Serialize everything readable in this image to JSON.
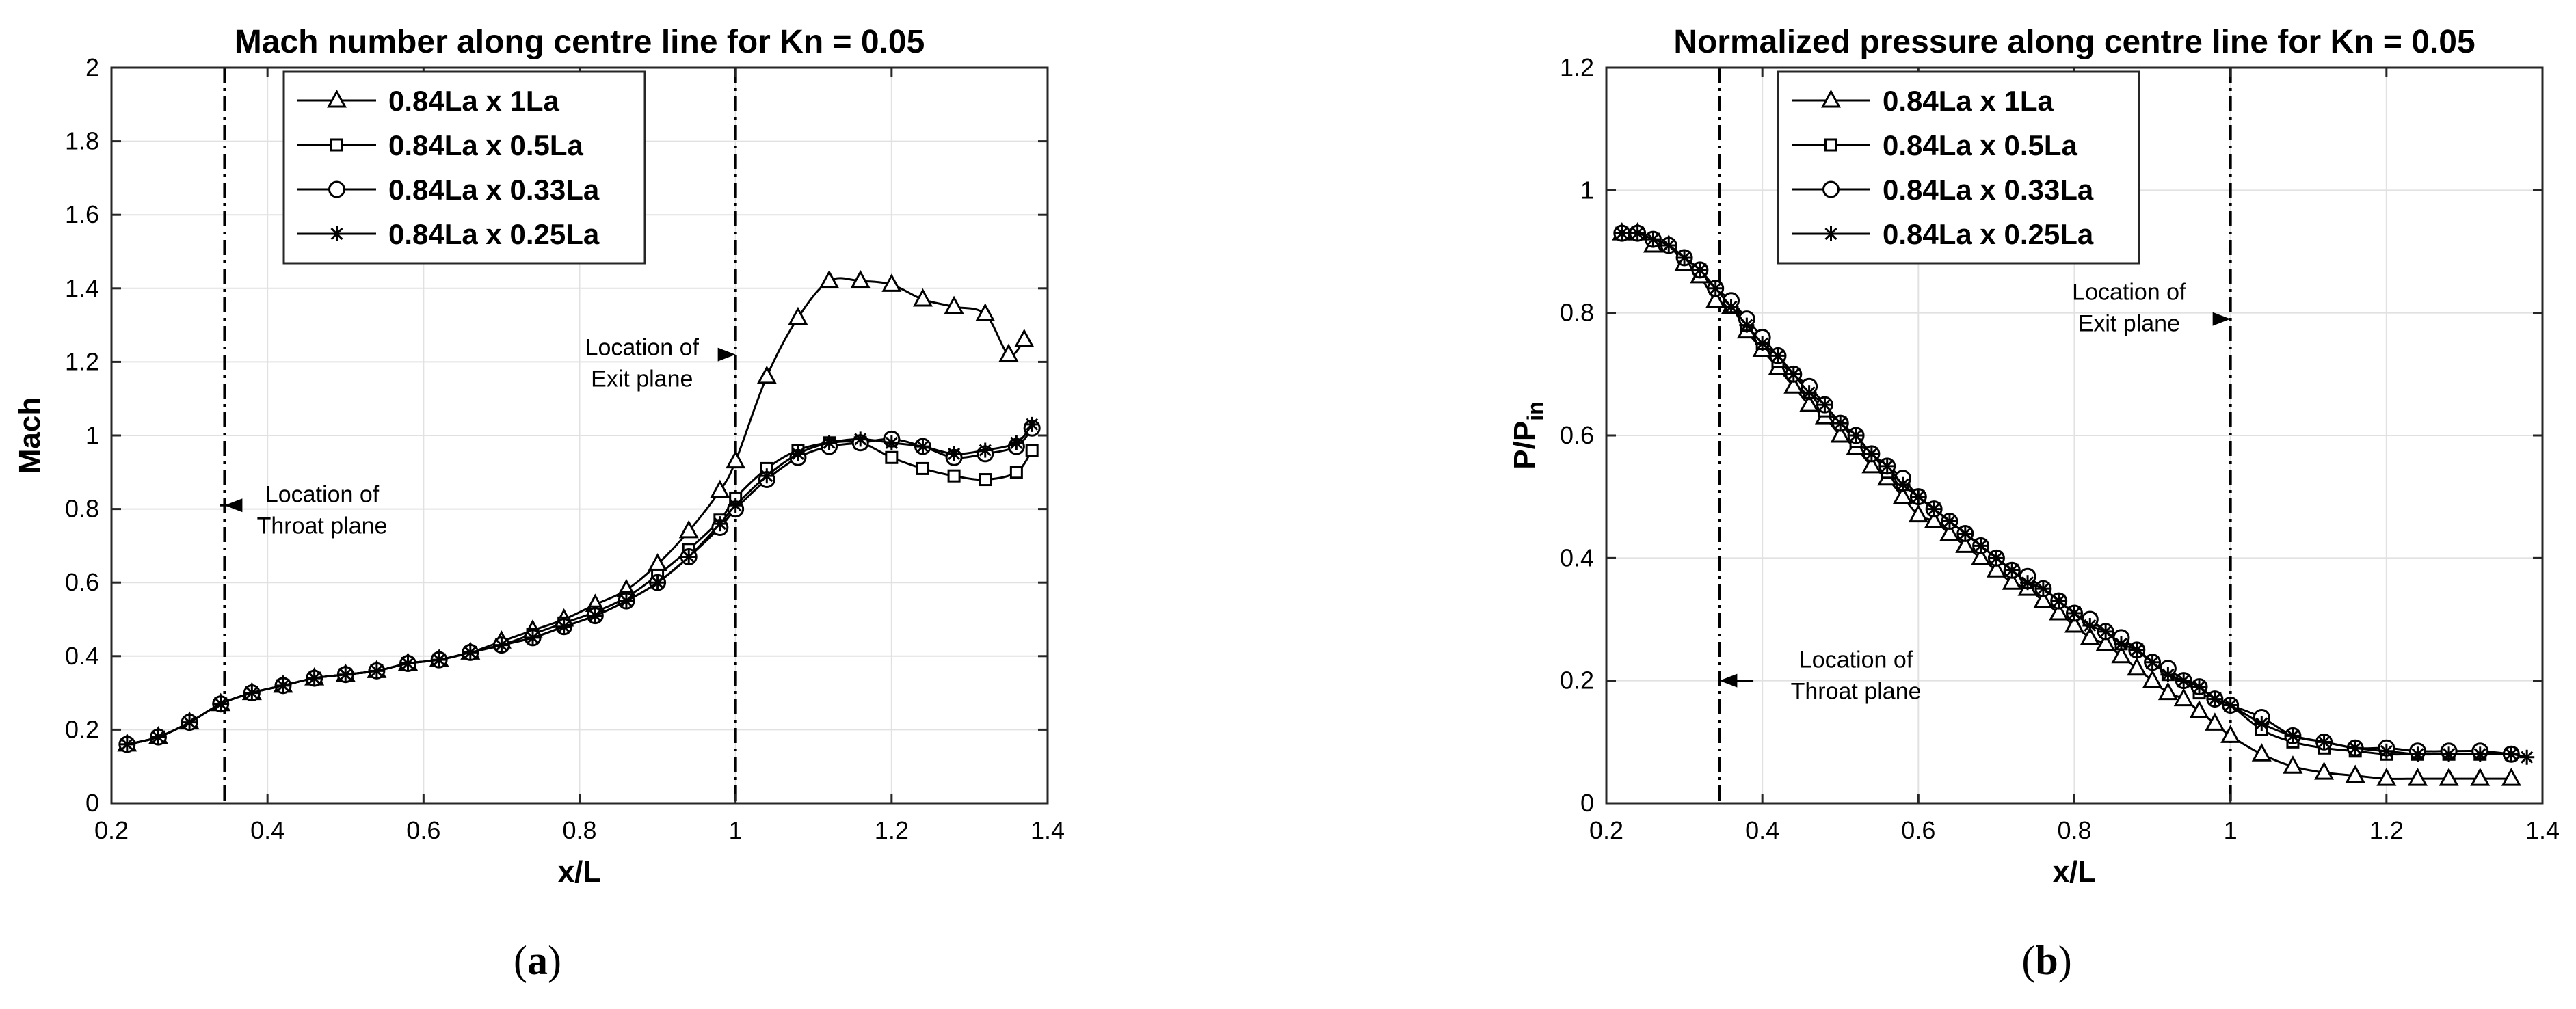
{
  "chart_data": [
    {
      "type": "line",
      "panel": "a",
      "title": "Mach number along centre line for Kn = 0.05",
      "xlabel": "x/L",
      "ylabel": "Mach",
      "xlim": [
        0.2,
        1.4
      ],
      "ylim": [
        0,
        2
      ],
      "xticks": [
        0.2,
        0.4,
        0.6,
        0.8,
        1,
        1.2,
        1.4
      ],
      "yticks": [
        0,
        0.2,
        0.4,
        0.6,
        0.8,
        1,
        1.2,
        1.4,
        1.6,
        1.8,
        2
      ],
      "xtick_labels": [
        "0.2",
        "0.4",
        "0.6",
        "0.8",
        "1",
        "1.2",
        "1.4"
      ],
      "ytick_labels": [
        "0",
        "0.2",
        "0.4",
        "0.6",
        "0.8",
        "1",
        "1.2",
        "1.4",
        "1.6",
        "1.8",
        "2"
      ],
      "grid": true,
      "legend_position": "top-left",
      "vlines": [
        0.345,
        1.0
      ],
      "annotations": [
        {
          "lines": [
            "Location of",
            "Throat plane"
          ],
          "arrow_to": [
            0.345,
            0.81
          ],
          "text_at": [
            0.47,
            0.8
          ]
        },
        {
          "lines": [
            "Location of",
            "Exit plane"
          ],
          "arrow_to": [
            1.0,
            1.22
          ],
          "text_at": [
            0.88,
            1.2
          ]
        }
      ],
      "series": [
        {
          "name": "0.84La x 1La",
          "marker": "triangle",
          "x": [
            0.22,
            0.26,
            0.3,
            0.34,
            0.38,
            0.42,
            0.46,
            0.5,
            0.54,
            0.58,
            0.62,
            0.66,
            0.7,
            0.74,
            0.78,
            0.82,
            0.86,
            0.9,
            0.94,
            0.98,
            1.0,
            1.04,
            1.08,
            1.12,
            1.16,
            1.2,
            1.24,
            1.28,
            1.32,
            1.35,
            1.37
          ],
          "y": [
            0.16,
            0.18,
            0.22,
            0.27,
            0.3,
            0.32,
            0.34,
            0.35,
            0.36,
            0.38,
            0.39,
            0.41,
            0.44,
            0.47,
            0.5,
            0.54,
            0.58,
            0.65,
            0.74,
            0.85,
            0.93,
            1.16,
            1.32,
            1.42,
            1.42,
            1.41,
            1.37,
            1.35,
            1.33,
            1.22,
            1.26
          ]
        },
        {
          "name": "0.84La x 0.5La",
          "marker": "square",
          "x": [
            0.22,
            0.26,
            0.3,
            0.34,
            0.38,
            0.42,
            0.46,
            0.5,
            0.54,
            0.58,
            0.62,
            0.66,
            0.7,
            0.74,
            0.78,
            0.82,
            0.86,
            0.9,
            0.94,
            0.98,
            1.0,
            1.04,
            1.08,
            1.12,
            1.16,
            1.2,
            1.24,
            1.28,
            1.32,
            1.36,
            1.38
          ],
          "y": [
            0.16,
            0.18,
            0.22,
            0.27,
            0.3,
            0.32,
            0.34,
            0.35,
            0.36,
            0.38,
            0.39,
            0.41,
            0.43,
            0.46,
            0.49,
            0.52,
            0.56,
            0.62,
            0.69,
            0.77,
            0.83,
            0.91,
            0.96,
            0.98,
            0.98,
            0.94,
            0.91,
            0.89,
            0.88,
            0.9,
            0.96
          ]
        },
        {
          "name": "0.84La x 0.33La",
          "marker": "circle",
          "x": [
            0.22,
            0.26,
            0.3,
            0.34,
            0.38,
            0.42,
            0.46,
            0.5,
            0.54,
            0.58,
            0.62,
            0.66,
            0.7,
            0.74,
            0.78,
            0.82,
            0.86,
            0.9,
            0.94,
            0.98,
            1.0,
            1.04,
            1.08,
            1.12,
            1.16,
            1.2,
            1.24,
            1.28,
            1.32,
            1.36,
            1.38
          ],
          "y": [
            0.16,
            0.18,
            0.22,
            0.27,
            0.3,
            0.32,
            0.34,
            0.35,
            0.36,
            0.38,
            0.39,
            0.41,
            0.43,
            0.45,
            0.48,
            0.51,
            0.55,
            0.6,
            0.67,
            0.75,
            0.8,
            0.88,
            0.94,
            0.97,
            0.98,
            0.99,
            0.97,
            0.94,
            0.95,
            0.97,
            1.02
          ]
        },
        {
          "name": "0.84La x 0.25La",
          "marker": "asterisk",
          "x": [
            0.22,
            0.26,
            0.3,
            0.34,
            0.38,
            0.42,
            0.46,
            0.5,
            0.54,
            0.58,
            0.62,
            0.66,
            0.7,
            0.74,
            0.78,
            0.82,
            0.86,
            0.9,
            0.94,
            0.98,
            1.0,
            1.04,
            1.08,
            1.12,
            1.16,
            1.2,
            1.24,
            1.28,
            1.32,
            1.36,
            1.38
          ],
          "y": [
            0.16,
            0.18,
            0.22,
            0.27,
            0.3,
            0.32,
            0.34,
            0.35,
            0.36,
            0.38,
            0.39,
            0.41,
            0.43,
            0.45,
            0.48,
            0.51,
            0.55,
            0.6,
            0.67,
            0.76,
            0.81,
            0.89,
            0.95,
            0.98,
            0.99,
            0.98,
            0.97,
            0.95,
            0.96,
            0.98,
            1.03
          ]
        }
      ]
    },
    {
      "type": "line",
      "panel": "b",
      "title": "Normalized pressure along centre line for Kn = 0.05",
      "xlabel": "x/L",
      "ylabel": "P/P",
      "ylabel_sub": "in",
      "xlim": [
        0.2,
        1.4
      ],
      "ylim": [
        0,
        1.2
      ],
      "xticks": [
        0.2,
        0.4,
        0.6,
        0.8,
        1,
        1.2,
        1.4
      ],
      "yticks": [
        0,
        0.2,
        0.4,
        0.6,
        0.8,
        1,
        1.2
      ],
      "xtick_labels": [
        "0.2",
        "0.4",
        "0.6",
        "0.8",
        "1",
        "1.2",
        "1.4"
      ],
      "ytick_labels": [
        "0",
        "0.2",
        "0.4",
        "0.6",
        "0.8",
        "1",
        "1.2"
      ],
      "grid": true,
      "legend_position": "top-center",
      "vlines": [
        0.345,
        1.0
      ],
      "annotations": [
        {
          "lines": [
            "Location of",
            "Throat plane"
          ],
          "arrow_to": [
            0.345,
            0.2
          ],
          "text_at": [
            0.52,
            0.21
          ]
        },
        {
          "lines": [
            "Location of",
            "Exit plane"
          ],
          "arrow_to": [
            1.0,
            0.79
          ],
          "text_at": [
            0.87,
            0.81
          ]
        }
      ],
      "series": [
        {
          "name": "0.84La x 1La",
          "marker": "triangle",
          "x": [
            0.22,
            0.24,
            0.26,
            0.28,
            0.3,
            0.32,
            0.34,
            0.36,
            0.38,
            0.4,
            0.42,
            0.44,
            0.46,
            0.48,
            0.5,
            0.52,
            0.54,
            0.56,
            0.58,
            0.6,
            0.62,
            0.64,
            0.66,
            0.68,
            0.7,
            0.72,
            0.74,
            0.76,
            0.78,
            0.8,
            0.82,
            0.84,
            0.86,
            0.88,
            0.9,
            0.92,
            0.94,
            0.96,
            0.98,
            1.0,
            1.04,
            1.08,
            1.12,
            1.16,
            1.2,
            1.24,
            1.28,
            1.32,
            1.36
          ],
          "y": [
            0.93,
            0.93,
            0.91,
            0.91,
            0.88,
            0.86,
            0.82,
            0.81,
            0.77,
            0.74,
            0.71,
            0.68,
            0.65,
            0.63,
            0.6,
            0.58,
            0.55,
            0.53,
            0.5,
            0.47,
            0.46,
            0.44,
            0.42,
            0.4,
            0.38,
            0.36,
            0.35,
            0.33,
            0.31,
            0.29,
            0.27,
            0.26,
            0.24,
            0.22,
            0.2,
            0.18,
            0.17,
            0.15,
            0.13,
            0.11,
            0.08,
            0.06,
            0.05,
            0.045,
            0.04,
            0.04,
            0.04,
            0.04,
            0.04
          ]
        },
        {
          "name": "0.84La x 0.5La",
          "marker": "square",
          "x": [
            0.22,
            0.24,
            0.26,
            0.28,
            0.3,
            0.32,
            0.34,
            0.36,
            0.38,
            0.4,
            0.42,
            0.44,
            0.46,
            0.48,
            0.5,
            0.52,
            0.54,
            0.56,
            0.58,
            0.6,
            0.62,
            0.64,
            0.66,
            0.68,
            0.7,
            0.72,
            0.74,
            0.76,
            0.78,
            0.8,
            0.82,
            0.84,
            0.86,
            0.88,
            0.9,
            0.92,
            0.94,
            0.96,
            0.98,
            1.0,
            1.04,
            1.08,
            1.12,
            1.16,
            1.2,
            1.24,
            1.28,
            1.32,
            1.36
          ],
          "y": [
            0.93,
            0.93,
            0.92,
            0.91,
            0.89,
            0.87,
            0.84,
            0.81,
            0.78,
            0.75,
            0.72,
            0.7,
            0.67,
            0.64,
            0.62,
            0.59,
            0.57,
            0.54,
            0.52,
            0.5,
            0.48,
            0.46,
            0.44,
            0.42,
            0.4,
            0.38,
            0.36,
            0.35,
            0.33,
            0.31,
            0.3,
            0.28,
            0.26,
            0.25,
            0.23,
            0.21,
            0.2,
            0.18,
            0.17,
            0.16,
            0.12,
            0.1,
            0.09,
            0.085,
            0.08,
            0.08,
            0.08,
            0.08,
            0.08
          ]
        },
        {
          "name": "0.84La x 0.33La",
          "marker": "circle",
          "x": [
            0.22,
            0.24,
            0.26,
            0.28,
            0.3,
            0.32,
            0.34,
            0.36,
            0.38,
            0.4,
            0.42,
            0.44,
            0.46,
            0.48,
            0.5,
            0.52,
            0.54,
            0.56,
            0.58,
            0.6,
            0.62,
            0.64,
            0.66,
            0.68,
            0.7,
            0.72,
            0.74,
            0.76,
            0.78,
            0.8,
            0.82,
            0.84,
            0.86,
            0.88,
            0.9,
            0.92,
            0.94,
            0.96,
            0.98,
            1.0,
            1.04,
            1.08,
            1.12,
            1.16,
            1.2,
            1.24,
            1.28,
            1.32,
            1.36
          ],
          "y": [
            0.93,
            0.93,
            0.92,
            0.91,
            0.89,
            0.87,
            0.84,
            0.82,
            0.79,
            0.76,
            0.73,
            0.7,
            0.68,
            0.65,
            0.62,
            0.6,
            0.57,
            0.55,
            0.53,
            0.5,
            0.48,
            0.46,
            0.44,
            0.42,
            0.4,
            0.38,
            0.37,
            0.35,
            0.33,
            0.31,
            0.3,
            0.28,
            0.27,
            0.25,
            0.23,
            0.22,
            0.2,
            0.19,
            0.17,
            0.16,
            0.14,
            0.11,
            0.1,
            0.09,
            0.09,
            0.085,
            0.085,
            0.085,
            0.08
          ]
        },
        {
          "name": "0.84La x 0.25La",
          "marker": "asterisk",
          "x": [
            0.22,
            0.24,
            0.26,
            0.28,
            0.3,
            0.32,
            0.34,
            0.36,
            0.38,
            0.4,
            0.42,
            0.44,
            0.46,
            0.48,
            0.5,
            0.52,
            0.54,
            0.56,
            0.58,
            0.6,
            0.62,
            0.64,
            0.66,
            0.68,
            0.7,
            0.72,
            0.74,
            0.76,
            0.78,
            0.8,
            0.82,
            0.84,
            0.86,
            0.88,
            0.9,
            0.92,
            0.94,
            0.96,
            0.98,
            1.0,
            1.04,
            1.08,
            1.12,
            1.16,
            1.2,
            1.24,
            1.28,
            1.32,
            1.36,
            1.38
          ],
          "y": [
            0.93,
            0.93,
            0.92,
            0.91,
            0.89,
            0.87,
            0.84,
            0.81,
            0.78,
            0.75,
            0.73,
            0.7,
            0.67,
            0.65,
            0.62,
            0.6,
            0.57,
            0.55,
            0.52,
            0.5,
            0.48,
            0.46,
            0.44,
            0.42,
            0.4,
            0.38,
            0.36,
            0.35,
            0.33,
            0.31,
            0.29,
            0.28,
            0.26,
            0.25,
            0.23,
            0.21,
            0.2,
            0.19,
            0.17,
            0.16,
            0.13,
            0.11,
            0.1,
            0.09,
            0.085,
            0.08,
            0.08,
            0.08,
            0.08,
            0.075
          ]
        }
      ]
    }
  ],
  "captions": {
    "a": "a",
    "b": "b"
  }
}
